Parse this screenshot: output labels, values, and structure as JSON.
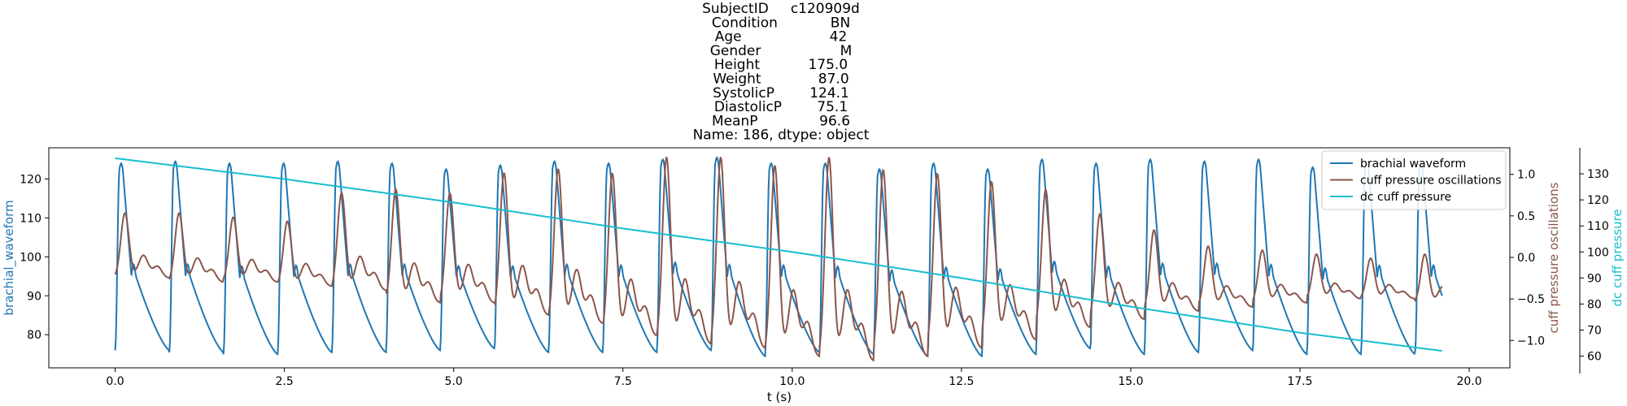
{
  "chart_data": {
    "type": "line",
    "title_lines": [
      "SubjectID     c120909d",
      "Condition            BN",
      "Age                    42",
      "Gender                  M",
      "Height           175.0",
      "Weight             87.0",
      "SystolicP        124.1",
      "DiastolicP        75.1",
      "MeanP              96.6",
      "Name: 186, dtype: object"
    ],
    "xlabel": "t (s)",
    "ylabel_left": "brachial_waveform",
    "ylabel_right1": "cuff pressure oscillations",
    "ylabel_right2": "dc cuff pressure",
    "xlim": [
      -0.98,
      20.6
    ],
    "ylim_left": [
      71.5,
      128
    ],
    "ylim_right1": [
      -1.33,
      1.32
    ],
    "ylim_right2": [
      55.5,
      140
    ],
    "x_ticks": [
      0.0,
      2.5,
      5.0,
      7.5,
      10.0,
      12.5,
      15.0,
      17.5,
      20.0
    ],
    "x_tick_labels": [
      "0.0",
      "2.5",
      "5.0",
      "7.5",
      "10.0",
      "12.5",
      "15.0",
      "17.5",
      "20.0"
    ],
    "left_ticks": [
      80,
      90,
      100,
      110,
      120
    ],
    "left_tick_labels": [
      "80",
      "90",
      "100",
      "110",
      "120"
    ],
    "right1_ticks": [
      -1.0,
      -0.5,
      0.0,
      0.5,
      1.0
    ],
    "right1_tick_labels": [
      "−1.0",
      "−0.5",
      "0.0",
      "0.5",
      "1.0"
    ],
    "right2_ticks": [
      60,
      70,
      80,
      90,
      100,
      110,
      120,
      130
    ],
    "right2_tick_labels": [
      "60",
      "70",
      "80",
      "90",
      "100",
      "110",
      "120",
      "130"
    ],
    "legend_position": "upper-right",
    "series": [
      {
        "name": "brachial waveform",
        "axis": "left",
        "color": "#1f77b4",
        "beat_times": [
          0.0,
          0.8,
          1.61,
          2.41,
          3.22,
          4.02,
          4.82,
          5.63,
          6.43,
          7.24,
          8.04,
          8.84,
          9.65,
          10.45,
          11.26,
          12.06,
          12.86,
          13.67,
          14.47,
          15.28,
          16.08,
          16.88,
          17.69,
          18.49,
          19.3
        ],
        "beat_peaks": [
          124,
          124.5,
          124,
          124,
          124.5,
          124,
          122.5,
          123.5,
          124.5,
          124,
          125,
          125.5,
          124,
          124,
          122.5,
          124,
          122.5,
          125,
          124,
          125,
          124.5,
          125,
          123,
          124.5,
          124
        ],
        "beat_troughs": [
          76,
          75.5,
          75,
          75.5,
          75.5,
          76,
          76.5,
          75.5,
          75.5,
          75.5,
          76,
          74.5,
          75.5,
          75,
          74.5,
          74.5,
          75,
          76.5,
          75,
          75.5,
          76,
          75,
          75,
          75,
          75.5
        ],
        "t_start": 0.0,
        "t_end": 19.6
      },
      {
        "name": "cuff pressure oscillations",
        "axis": "right1",
        "color": "#8c564b",
        "beat_times": [
          0.0,
          0.8,
          1.61,
          2.41,
          3.22,
          4.02,
          4.82,
          5.63,
          6.43,
          7.24,
          8.04,
          8.84,
          9.65,
          10.45,
          11.26,
          12.06,
          12.86,
          13.67,
          14.47,
          15.28,
          16.08,
          16.88,
          17.69,
          18.49,
          19.3
        ],
        "beat_peaks": [
          0.55,
          0.55,
          0.5,
          0.45,
          0.8,
          0.85,
          0.8,
          1.05,
          1.1,
          1.05,
          1.25,
          1.25,
          1.15,
          1.25,
          1.1,
          1.05,
          0.95,
          0.85,
          0.55,
          0.35,
          0.15,
          0.1,
          0.05,
          0.0,
          0.05
        ],
        "beat_troughs": [
          -0.25,
          -0.3,
          -0.3,
          -0.35,
          -0.4,
          -0.55,
          -0.55,
          -0.7,
          -0.8,
          -0.95,
          -1.05,
          -1.1,
          -1.2,
          -1.25,
          -1.2,
          -1.1,
          -1.0,
          -0.85,
          -0.75,
          -0.65,
          -0.6,
          -0.55,
          -0.5,
          -0.5,
          -0.55
        ],
        "t_start": 0.0,
        "t_end": 19.6
      },
      {
        "name": "dc cuff pressure",
        "axis": "right2",
        "color": "#17becf",
        "x": [
          0.0,
          2.5,
          5.0,
          7.5,
          10.0,
          12.5,
          15.0,
          17.5,
          19.6
        ],
        "y": [
          136,
          128,
          119,
          109,
          100,
          90,
          79,
          69,
          62
        ]
      }
    ]
  }
}
